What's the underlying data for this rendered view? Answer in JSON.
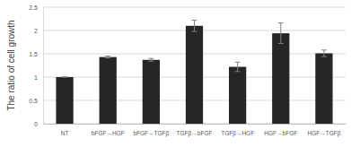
{
  "chart_data": {
    "type": "bar",
    "y_label": "The ratio of cell growth",
    "categories": [
      "NT",
      "bFGF→HGF",
      "bFGF→TGFβ",
      "TGFβ→bFGF",
      "TGFβ→HGF",
      "HGF→bFGF",
      "HGF→TGFβ"
    ],
    "values": [
      1.0,
      1.43,
      1.37,
      2.1,
      1.22,
      1.94,
      1.51
    ],
    "errors": [
      0,
      0.02,
      0.03,
      0.12,
      0.1,
      0.22,
      0.07
    ],
    "color": "#262626",
    "ylim": [
      0,
      2.5
    ],
    "yticks": [
      0,
      0.5,
      1,
      1.5,
      2,
      2.5
    ],
    "grid": true
  }
}
